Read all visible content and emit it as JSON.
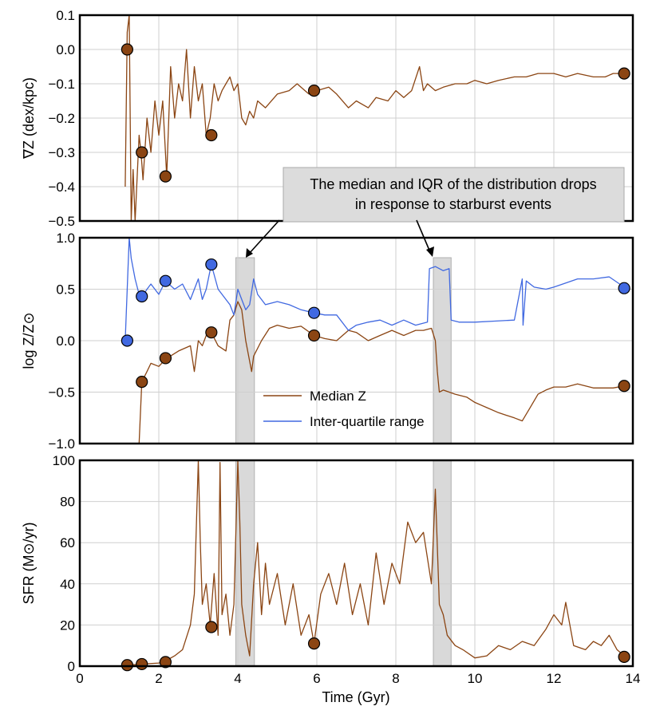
{
  "chart_data": [
    {
      "type": "line",
      "panel": "metallicity-gradient",
      "ylabel": "∇Z (dex/kpc)",
      "ylim": [
        -0.5,
        0.1
      ],
      "yticks": [
        "0.1",
        "0.0",
        "−0.1",
        "−0.2",
        "−0.3",
        "−0.4",
        "−0.5"
      ],
      "xlim": [
        0,
        14
      ],
      "grid": true,
      "series": [
        {
          "color": "#8B4513",
          "x": [
            1.15,
            1.2,
            1.25,
            1.3,
            1.35,
            1.4,
            1.5,
            1.55,
            1.6,
            1.7,
            1.8,
            1.9,
            2.0,
            2.1,
            2.2,
            2.3,
            2.4,
            2.5,
            2.6,
            2.7,
            2.8,
            2.9,
            3.0,
            3.1,
            3.2,
            3.3,
            3.4,
            3.5,
            3.6,
            3.7,
            3.8,
            3.9,
            4.0,
            4.1,
            4.2,
            4.3,
            4.4,
            4.5,
            4.7,
            5.0,
            5.3,
            5.5,
            5.8,
            6.0,
            6.3,
            6.5,
            6.8,
            7.0,
            7.3,
            7.5,
            7.8,
            8.0,
            8.2,
            8.4,
            8.6,
            8.7,
            8.8,
            9.0,
            9.2,
            9.5,
            9.8,
            10.0,
            10.3,
            10.6,
            11.0,
            11.3,
            11.6,
            12.0,
            12.3,
            12.6,
            13.0,
            13.3,
            13.5,
            13.78
          ],
          "y": [
            -0.4,
            0.05,
            0.1,
            -0.5,
            -0.35,
            -0.5,
            -0.25,
            -0.3,
            -0.38,
            -0.2,
            -0.3,
            -0.15,
            -0.25,
            -0.15,
            -0.37,
            -0.05,
            -0.2,
            -0.1,
            -0.15,
            0.0,
            -0.2,
            -0.05,
            -0.15,
            -0.1,
            -0.25,
            -0.2,
            -0.1,
            -0.15,
            -0.12,
            -0.1,
            -0.08,
            -0.12,
            -0.1,
            -0.2,
            -0.22,
            -0.18,
            -0.2,
            -0.15,
            -0.17,
            -0.13,
            -0.12,
            -0.1,
            -0.13,
            -0.12,
            -0.11,
            -0.13,
            -0.17,
            -0.15,
            -0.17,
            -0.14,
            -0.15,
            -0.12,
            -0.14,
            -0.12,
            -0.05,
            -0.12,
            -0.1,
            -0.12,
            -0.11,
            -0.1,
            -0.1,
            -0.09,
            -0.1,
            -0.09,
            -0.08,
            -0.08,
            -0.07,
            -0.07,
            -0.08,
            -0.07,
            -0.08,
            -0.08,
            -0.07,
            -0.07
          ]
        }
      ],
      "markers": {
        "color": "#8B4513",
        "x": [
          1.2,
          1.57,
          2.17,
          3.33,
          5.93,
          13.78
        ],
        "y": [
          0.0,
          -0.3,
          -0.37,
          -0.25,
          -0.12,
          -0.07
        ]
      }
    },
    {
      "type": "line",
      "panel": "metallicity",
      "ylabel": "log Z/Z⊙",
      "ylim": [
        -1.0,
        1.0
      ],
      "yticks": [
        "1.0",
        "0.5",
        "0.0",
        "−0.5",
        "−1.0"
      ],
      "xlim": [
        0,
        14
      ],
      "grid": true,
      "legend": "center",
      "series": [
        {
          "name": "Median Z",
          "color": "#8B4513",
          "x": [
            1.5,
            1.57,
            1.7,
            1.8,
            2.0,
            2.17,
            2.5,
            2.8,
            2.9,
            3.0,
            3.1,
            3.2,
            3.33,
            3.5,
            3.7,
            3.8,
            3.9,
            4.0,
            4.1,
            4.2,
            4.3,
            4.35,
            4.4,
            4.6,
            4.8,
            5.0,
            5.3,
            5.6,
            5.93,
            6.2,
            6.5,
            6.8,
            7.0,
            7.3,
            7.6,
            7.9,
            8.2,
            8.5,
            8.7,
            8.9,
            9.0,
            9.05,
            9.1,
            9.2,
            9.5,
            9.8,
            10.0,
            10.3,
            10.6,
            11.0,
            11.2,
            11.4,
            11.6,
            11.8,
            12.0,
            12.3,
            12.6,
            13.0,
            13.5,
            13.78
          ],
          "y": [
            -1.0,
            -0.4,
            -0.3,
            -0.22,
            -0.25,
            -0.18,
            -0.1,
            -0.05,
            -0.3,
            0.0,
            -0.05,
            0.05,
            0.08,
            -0.05,
            -0.1,
            0.2,
            0.25,
            0.38,
            0.3,
            0.0,
            -0.2,
            -0.3,
            -0.15,
            0.0,
            0.12,
            0.15,
            0.12,
            0.14,
            0.05,
            0.02,
            0.0,
            0.1,
            0.08,
            0.0,
            0.05,
            0.1,
            0.05,
            0.1,
            0.1,
            0.12,
            0.0,
            -0.3,
            -0.5,
            -0.48,
            -0.52,
            -0.55,
            -0.6,
            -0.65,
            -0.7,
            -0.75,
            -0.78,
            -0.65,
            -0.52,
            -0.48,
            -0.45,
            -0.45,
            -0.42,
            -0.46,
            -0.46,
            -0.44
          ]
        },
        {
          "name": "Inter-quartile range",
          "color": "#4169E1",
          "x": [
            1.15,
            1.2,
            1.25,
            1.3,
            1.4,
            1.5,
            1.57,
            1.7,
            1.8,
            2.0,
            2.17,
            2.4,
            2.6,
            2.8,
            3.0,
            3.1,
            3.2,
            3.33,
            3.5,
            3.7,
            3.8,
            3.9,
            4.0,
            4.1,
            4.2,
            4.3,
            4.4,
            4.5,
            4.7,
            5.0,
            5.3,
            5.6,
            5.93,
            6.2,
            6.5,
            6.8,
            7.0,
            7.3,
            7.6,
            7.9,
            8.2,
            8.5,
            8.8,
            8.85,
            9.0,
            9.2,
            9.35,
            9.4,
            9.6,
            10.0,
            10.5,
            11.0,
            11.2,
            11.22,
            11.3,
            11.5,
            11.8,
            12.0,
            12.3,
            12.6,
            13.0,
            13.4,
            13.78
          ],
          "y": [
            0.0,
            0.5,
            1.0,
            0.8,
            0.6,
            0.45,
            0.42,
            0.5,
            0.55,
            0.45,
            0.58,
            0.5,
            0.55,
            0.4,
            0.6,
            0.4,
            0.5,
            0.74,
            0.5,
            0.4,
            0.35,
            0.25,
            0.5,
            0.4,
            0.3,
            0.35,
            0.6,
            0.45,
            0.35,
            0.38,
            0.35,
            0.3,
            0.27,
            0.25,
            0.25,
            0.1,
            0.15,
            0.18,
            0.2,
            0.15,
            0.2,
            0.15,
            0.18,
            0.7,
            0.72,
            0.68,
            0.7,
            0.2,
            0.18,
            0.18,
            0.19,
            0.2,
            0.6,
            0.15,
            0.58,
            0.52,
            0.5,
            0.52,
            0.56,
            0.6,
            0.6,
            0.62,
            0.52
          ]
        }
      ],
      "markers": [
        {
          "color": "#8B4513",
          "x": [
            1.57,
            2.17,
            3.33,
            5.93,
            13.78
          ],
          "y": [
            -0.4,
            -0.17,
            0.08,
            0.05,
            -0.44
          ]
        },
        {
          "color": "#4169E1",
          "x": [
            1.2,
            1.57,
            2.17,
            3.33,
            5.93,
            13.78
          ],
          "y": [
            0.0,
            0.43,
            0.58,
            0.74,
            0.27,
            0.51
          ]
        }
      ]
    },
    {
      "type": "line",
      "panel": "star-formation-rate",
      "ylabel": "SFR (M⊙/yr)",
      "ylim": [
        0,
        100
      ],
      "yticks": [
        "100",
        "80",
        "60",
        "40",
        "20",
        "0"
      ],
      "xlim": [
        0,
        14
      ],
      "xticks": [
        "0",
        "2",
        "4",
        "6",
        "8",
        "10",
        "12",
        "14"
      ],
      "xlabel": "Time (Gyr)",
      "grid": true,
      "series": [
        {
          "color": "#8B4513",
          "x": [
            1.0,
            1.2,
            1.57,
            2.0,
            2.17,
            2.4,
            2.6,
            2.8,
            2.9,
            3.0,
            3.05,
            3.1,
            3.2,
            3.3,
            3.4,
            3.5,
            3.55,
            3.6,
            3.7,
            3.8,
            3.9,
            4.0,
            4.05,
            4.1,
            4.2,
            4.3,
            4.4,
            4.5,
            4.6,
            4.7,
            4.8,
            5.0,
            5.2,
            5.4,
            5.6,
            5.8,
            5.93,
            6.1,
            6.3,
            6.5,
            6.7,
            6.9,
            7.1,
            7.3,
            7.5,
            7.7,
            7.9,
            8.1,
            8.3,
            8.5,
            8.7,
            8.9,
            9.0,
            9.1,
            9.2,
            9.3,
            9.5,
            9.7,
            10.0,
            10.3,
            10.6,
            10.9,
            11.2,
            11.5,
            11.8,
            12.0,
            12.2,
            12.3,
            12.5,
            12.8,
            13.0,
            13.2,
            13.4,
            13.6,
            13.78
          ],
          "y": [
            0,
            0.5,
            1,
            1.5,
            2.5,
            5,
            8,
            20,
            35,
            100,
            60,
            30,
            40,
            20,
            45,
            15,
            99,
            25,
            35,
            15,
            30,
            100,
            70,
            30,
            15,
            5,
            40,
            60,
            25,
            50,
            30,
            45,
            20,
            40,
            15,
            25,
            11,
            35,
            45,
            30,
            50,
            25,
            40,
            20,
            55,
            30,
            50,
            40,
            70,
            60,
            65,
            40,
            86,
            30,
            25,
            15,
            10,
            8,
            4,
            5,
            10,
            8,
            12,
            10,
            18,
            25,
            20,
            31,
            10,
            8,
            12,
            10,
            15,
            8,
            5
          ]
        }
      ],
      "markers": {
        "color": "#8B4513",
        "x": [
          1.2,
          1.57,
          2.17,
          3.33,
          5.93,
          13.78
        ],
        "y": [
          0.5,
          1,
          2,
          19,
          11,
          4.5
        ]
      }
    }
  ],
  "shaded_regions": [
    {
      "x": [
        3.95,
        4.42
      ]
    },
    {
      "x": [
        8.95,
        9.4
      ]
    }
  ],
  "annotation": {
    "line1": "The median and IQR of the distribution drops",
    "line2": "in response to starburst events"
  },
  "colors": {
    "brown": "#8B4513",
    "blue": "#4169E1",
    "shade": "#d9d9d9",
    "grid": "#cfcfcf"
  }
}
